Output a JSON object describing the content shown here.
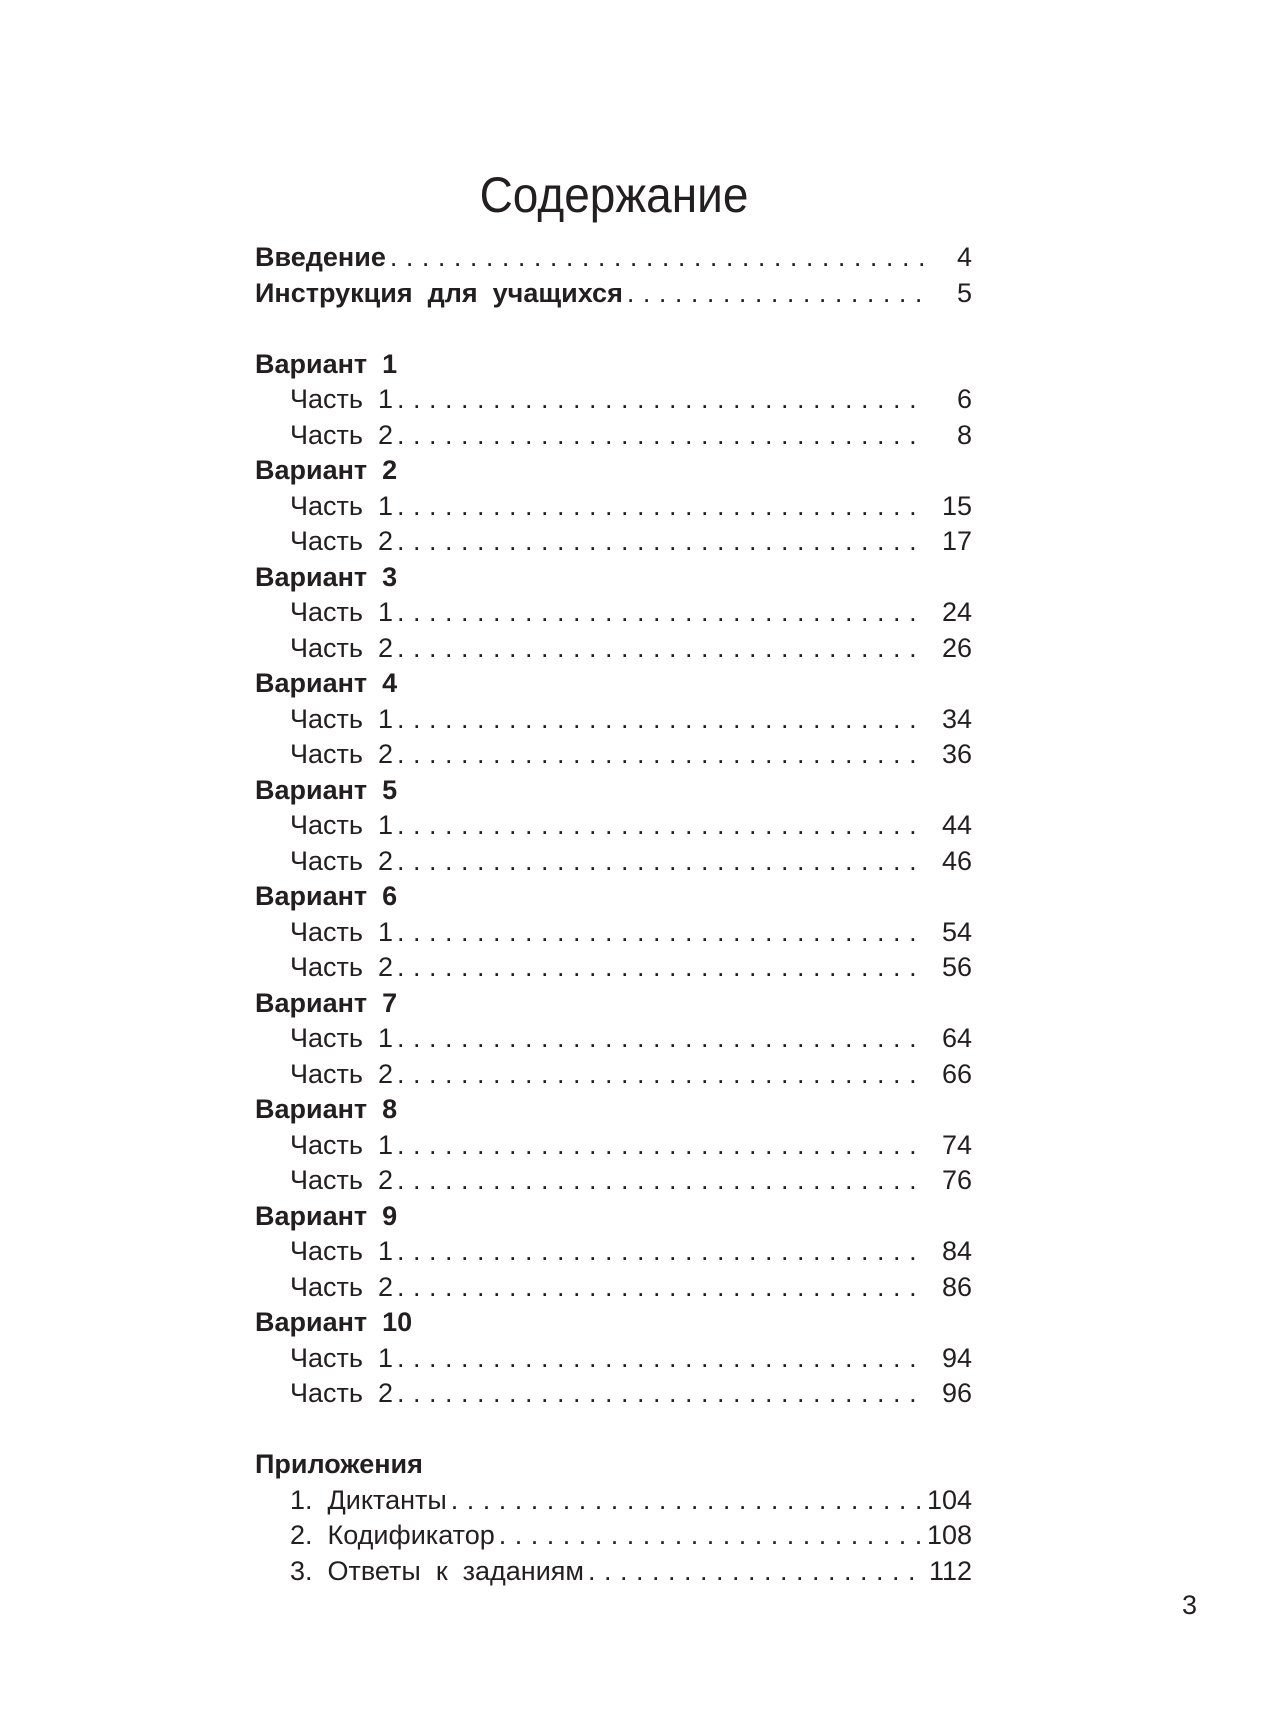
{
  "title": "Содержание",
  "intro": [
    {
      "label": "Введение",
      "page": "4"
    },
    {
      "label": "Инструкция  для  учащихся",
      "page": "5"
    }
  ],
  "variants": [
    {
      "label": "Вариант  1",
      "parts": [
        {
          "label": "Часть  1",
          "page": "6"
        },
        {
          "label": "Часть  2",
          "page": "8"
        }
      ]
    },
    {
      "label": "Вариант  2",
      "parts": [
        {
          "label": "Часть  1",
          "page": "15"
        },
        {
          "label": "Часть  2",
          "page": "17"
        }
      ]
    },
    {
      "label": "Вариант  3",
      "parts": [
        {
          "label": "Часть  1",
          "page": "24"
        },
        {
          "label": "Часть  2",
          "page": "26"
        }
      ]
    },
    {
      "label": "Вариант  4",
      "parts": [
        {
          "label": "Часть  1",
          "page": "34"
        },
        {
          "label": "Часть  2",
          "page": "36"
        }
      ]
    },
    {
      "label": "Вариант  5",
      "parts": [
        {
          "label": "Часть  1",
          "page": "44"
        },
        {
          "label": "Часть  2",
          "page": "46"
        }
      ]
    },
    {
      "label": "Вариант  6",
      "parts": [
        {
          "label": "Часть  1",
          "page": "54"
        },
        {
          "label": "Часть  2",
          "page": "56"
        }
      ]
    },
    {
      "label": "Вариант  7",
      "parts": [
        {
          "label": "Часть  1",
          "page": "64"
        },
        {
          "label": "Часть  2",
          "page": "66"
        }
      ]
    },
    {
      "label": "Вариант  8",
      "parts": [
        {
          "label": "Часть  1",
          "page": "74"
        },
        {
          "label": "Часть  2",
          "page": "76"
        }
      ]
    },
    {
      "label": "Вариант  9",
      "parts": [
        {
          "label": "Часть  1",
          "page": "84"
        },
        {
          "label": "Часть  2",
          "page": "86"
        }
      ]
    },
    {
      "label": "Вариант  10",
      "parts": [
        {
          "label": "Часть  1",
          "page": "94"
        },
        {
          "label": "Часть  2",
          "page": "96"
        }
      ]
    }
  ],
  "appendix": {
    "label": "Приложения",
    "items": [
      {
        "label": "1.  Диктанты",
        "page": "104"
      },
      {
        "label": "2.  Кодификатор",
        "page": "108"
      },
      {
        "label": "3.  Ответы  к  заданиям",
        "page": "112"
      }
    ]
  },
  "page_number": "3"
}
